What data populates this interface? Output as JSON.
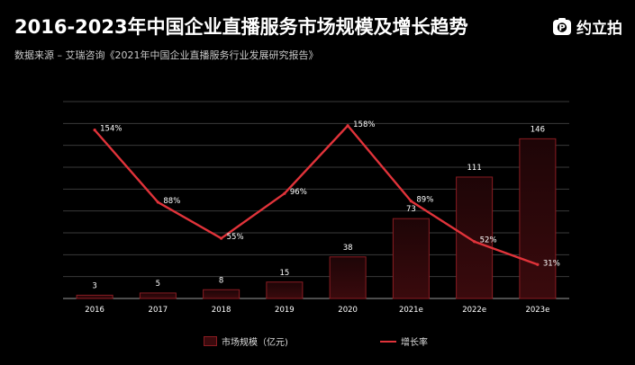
{
  "header": {
    "title": "2016-2023年中国企业直播服务市场规模及增长趋势",
    "source": "数据来源 – 艾瑞咨询《2021年中国企业直播服务行业发展研究报告》",
    "brand": "约立拍",
    "brand_icon": "camera-p-icon"
  },
  "legend": {
    "bar_label": "市场规模（亿元)",
    "line_label": "增长率"
  },
  "chart_data": {
    "type": "bar",
    "categories": [
      "2016",
      "2017",
      "2018",
      "2019",
      "2020",
      "2021e",
      "2022e",
      "2023e"
    ],
    "series": [
      {
        "name": "市场规模（亿元)",
        "type": "bar",
        "values": [
          3,
          5,
          8,
          15,
          38,
          73,
          111,
          146
        ],
        "labels": [
          "3",
          "5",
          "8",
          "15",
          "38",
          "73",
          "111",
          "146"
        ]
      },
      {
        "name": "增长率",
        "type": "line",
        "values": [
          154,
          88,
          55,
          96,
          158,
          89,
          52,
          31
        ],
        "labels": [
          "154%",
          "88%",
          "55%",
          "96%",
          "158%",
          "89%",
          "52%",
          "31%"
        ]
      }
    ],
    "bar_ylim": [
      0,
      180
    ],
    "line_ylim": [
      0,
      180
    ],
    "grid": true,
    "legend_position": "bottom",
    "colors": {
      "bar_fill": "#3a0a0d",
      "bar_stroke": "#8a1c22",
      "line": "#e0333a",
      "grid": "#3a3a3a",
      "text": "#ffffff"
    }
  }
}
